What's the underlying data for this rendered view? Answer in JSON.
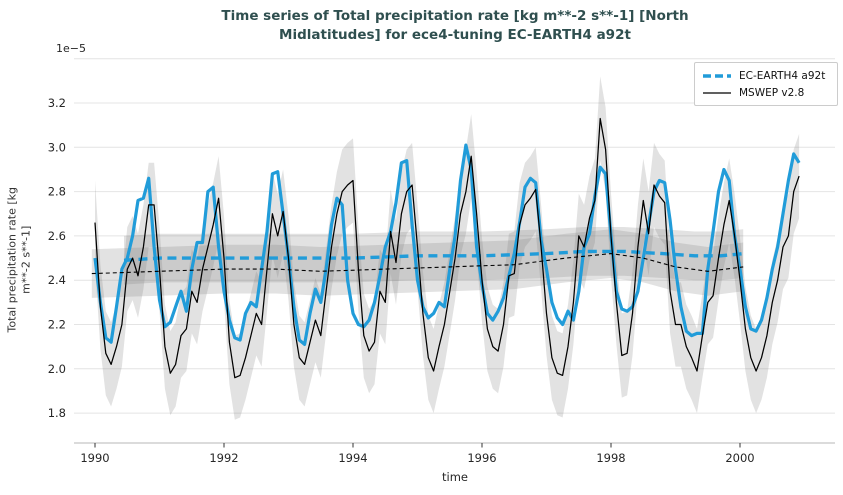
{
  "chart_data": {
    "type": "line",
    "title_line1": "Time series of Total precipitation rate [kg m**-2 s**-1] [North",
    "title_line2": "Midlatitudes] for ece4-tuning EC-EARTH4 a92t",
    "xlabel": "time",
    "ylabel_line1": "Total precipitation rate [kg",
    "ylabel_line2": "m**-2 s**-1]",
    "offset_text": "1e−5",
    "x_ticks": [
      1990,
      1992,
      1994,
      1996,
      1998,
      2000
    ],
    "y_ticks": [
      1.8,
      2.0,
      2.2,
      2.4,
      2.6,
      2.8,
      3.0,
      3.2
    ],
    "extra_gridlines": [
      3.4
    ],
    "xlim": [
      1989.68,
      2001.47
    ],
    "ylim": [
      1.665,
      3.42
    ],
    "grid": "horizontal",
    "legend_position": "upper right",
    "colors": {
      "model_line": "#219cd9",
      "reference_line": "#000000",
      "band_gray": "rgba(125,125,125,0.22)",
      "title": "#2f4f4f",
      "gridline": "#e4e4e4",
      "spine": "#cfcfcf"
    },
    "series": [
      {
        "name": "EC-EARTH4 a92t",
        "role": "model",
        "line": "thick solid blue, trend shown as thick blue dashed line",
        "start_year": 1990,
        "frequency": "monthly",
        "values_1e-5": [
          2.5,
          2.3,
          2.14,
          2.12,
          2.28,
          2.45,
          2.5,
          2.6,
          2.76,
          2.77,
          2.86,
          2.55,
          2.31,
          2.19,
          2.21,
          2.28,
          2.35,
          2.26,
          2.45,
          2.57,
          2.57,
          2.8,
          2.82,
          2.55,
          2.35,
          2.22,
          2.14,
          2.13,
          2.25,
          2.3,
          2.28,
          2.45,
          2.62,
          2.88,
          2.89,
          2.7,
          2.5,
          2.28,
          2.13,
          2.11,
          2.25,
          2.36,
          2.3,
          2.45,
          2.65,
          2.77,
          2.74,
          2.4,
          2.25,
          2.2,
          2.19,
          2.22,
          2.3,
          2.42,
          2.55,
          2.62,
          2.75,
          2.93,
          2.94,
          2.65,
          2.4,
          2.28,
          2.23,
          2.25,
          2.3,
          2.28,
          2.45,
          2.6,
          2.85,
          3.01,
          2.9,
          2.55,
          2.38,
          2.25,
          2.22,
          2.26,
          2.32,
          2.42,
          2.52,
          2.66,
          2.82,
          2.86,
          2.84,
          2.58,
          2.45,
          2.3,
          2.23,
          2.2,
          2.26,
          2.22,
          2.35,
          2.55,
          2.61,
          2.78,
          2.91,
          2.88,
          2.6,
          2.35,
          2.27,
          2.26,
          2.28,
          2.35,
          2.5,
          2.65,
          2.8,
          2.85,
          2.84,
          2.67,
          2.45,
          2.28,
          2.17,
          2.15,
          2.16,
          2.16,
          2.45,
          2.62,
          2.8,
          2.9,
          2.85,
          2.6,
          2.45,
          2.28,
          2.18,
          2.17,
          2.22,
          2.32,
          2.45,
          2.55,
          2.7,
          2.85,
          2.97,
          2.93
        ],
        "trend_points": [
          [
            1990.45,
            2.49
          ],
          [
            1991,
            2.5
          ],
          [
            1992,
            2.5
          ],
          [
            1993,
            2.5
          ],
          [
            1994,
            2.5
          ],
          [
            1995,
            2.51
          ],
          [
            1996,
            2.51
          ],
          [
            1997,
            2.52
          ],
          [
            1997.6,
            2.53
          ],
          [
            1998.2,
            2.53
          ],
          [
            1998.8,
            2.52
          ],
          [
            1999.3,
            2.51
          ],
          [
            1999.7,
            2.51
          ],
          [
            2000.05,
            2.52
          ]
        ]
      },
      {
        "name": "MSWEP v2.8",
        "role": "reference",
        "line": "thin solid black, trend shown as thin black dashed line, gray uncertainty band",
        "start_year": 1990,
        "frequency": "monthly",
        "values_1e-5": [
          2.66,
          2.28,
          2.07,
          2.02,
          2.1,
          2.2,
          2.45,
          2.5,
          2.42,
          2.55,
          2.74,
          2.74,
          2.45,
          2.1,
          1.98,
          2.02,
          2.15,
          2.18,
          2.35,
          2.3,
          2.45,
          2.55,
          2.65,
          2.77,
          2.5,
          2.12,
          1.96,
          1.97,
          2.05,
          2.15,
          2.25,
          2.2,
          2.45,
          2.7,
          2.6,
          2.71,
          2.5,
          2.2,
          2.05,
          2.02,
          2.12,
          2.22,
          2.15,
          2.35,
          2.55,
          2.7,
          2.8,
          2.83,
          2.85,
          2.45,
          2.15,
          2.08,
          2.12,
          2.35,
          2.3,
          2.62,
          2.48,
          2.7,
          2.8,
          2.83,
          2.55,
          2.25,
          2.05,
          1.99,
          2.1,
          2.2,
          2.35,
          2.5,
          2.7,
          2.8,
          2.96,
          2.7,
          2.4,
          2.18,
          2.1,
          2.08,
          2.2,
          2.42,
          2.43,
          2.65,
          2.74,
          2.77,
          2.81,
          2.55,
          2.25,
          2.05,
          1.98,
          1.97,
          2.1,
          2.3,
          2.6,
          2.55,
          2.68,
          2.76,
          3.13,
          2.99,
          2.6,
          2.3,
          2.06,
          2.07,
          2.25,
          2.55,
          2.76,
          2.61,
          2.83,
          2.78,
          2.75,
          2.35,
          2.2,
          2.2,
          2.1,
          2.05,
          1.99,
          2.15,
          2.3,
          2.33,
          2.5,
          2.65,
          2.76,
          2.6,
          2.4,
          2.18,
          2.05,
          1.99,
          2.05,
          2.15,
          2.3,
          2.4,
          2.55,
          2.6,
          2.8,
          2.87
        ],
        "trend_points": [
          [
            1989.95,
            2.43
          ],
          [
            1991,
            2.44
          ],
          [
            1992,
            2.45
          ],
          [
            1992.8,
            2.45
          ],
          [
            1993.5,
            2.44
          ],
          [
            1994.5,
            2.45
          ],
          [
            1995.5,
            2.46
          ],
          [
            1996.5,
            2.47
          ],
          [
            1997.3,
            2.5
          ],
          [
            1998.0,
            2.52
          ],
          [
            1998.5,
            2.5
          ],
          [
            1999.0,
            2.46
          ],
          [
            1999.5,
            2.44
          ],
          [
            2000.05,
            2.46
          ]
        ]
      }
    ],
    "bands": {
      "seasonal_band_halfwidth": 0.19,
      "trend_band_halfwidth": 0.11
    }
  },
  "legend": {
    "entries": [
      "EC-EARTH4 a92t",
      "MSWEP v2.8"
    ]
  }
}
